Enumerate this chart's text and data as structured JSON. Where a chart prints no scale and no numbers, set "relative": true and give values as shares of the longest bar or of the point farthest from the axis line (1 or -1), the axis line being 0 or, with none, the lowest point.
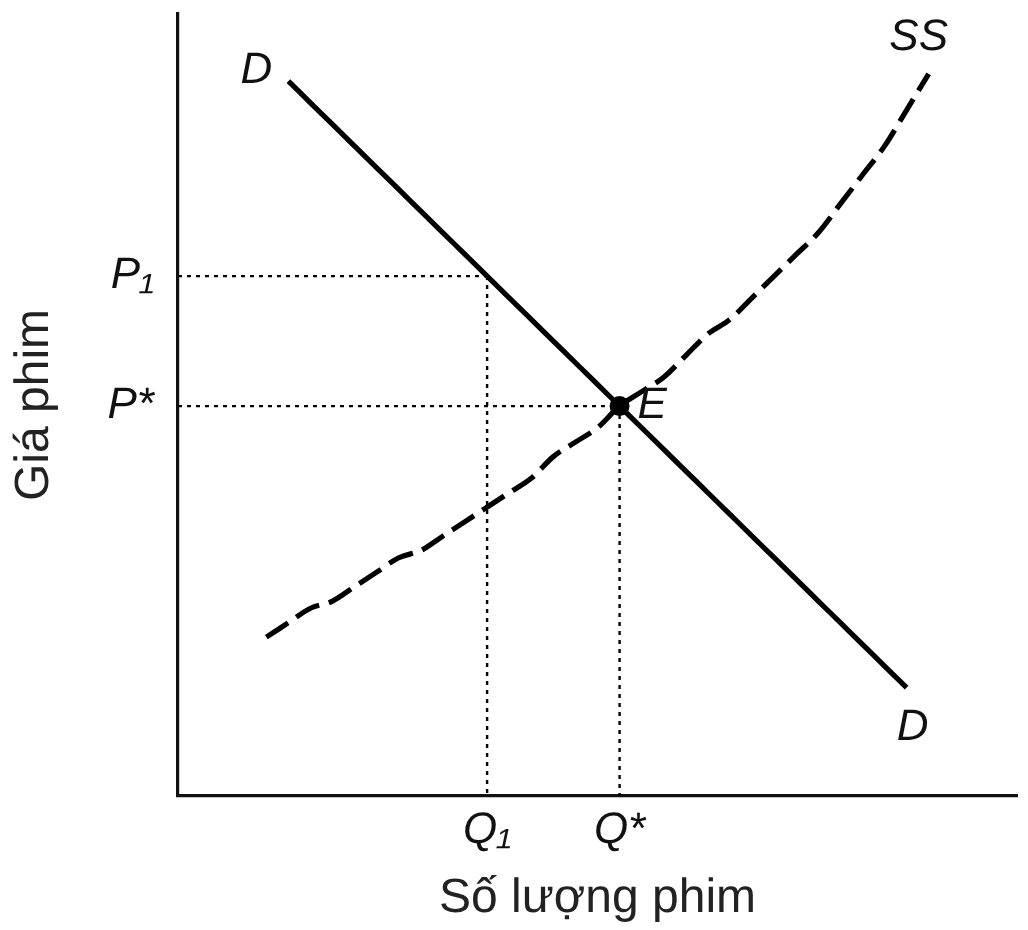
{
  "chart_data": {
    "type": "line",
    "xlabel": "Số lượng phim",
    "ylabel": "Giá phim",
    "relative": true,
    "legend": false,
    "tick_labels": "x",
    "categories": [
      null,
      null,
      null,
      null,
      null,
      null,
      null,
      null,
      null,
      null,
      null,
      null,
      null,
      null,
      "Q₁",
      null,
      null,
      null,
      null,
      null,
      "Q*",
      null,
      null,
      null,
      null,
      null,
      null,
      null,
      null,
      null,
      null,
      null,
      null,
      null,
      null,
      null,
      null,
      null,
      null
    ],
    "series": [
      {
        "name": "D",
        "color": "#000000",
        "line_style": "solid",
        "marker": "none",
        "values": [
          null,
          null,
          null,
          null,
          null,
          0.99,
          0.96,
          0.93,
          0.9,
          0.87,
          0.84,
          0.81,
          0.78,
          0.75,
          0.72,
          0.69,
          0.66,
          0.63,
          0.6,
          0.57,
          0.54,
          0.51,
          0.48,
          0.45,
          0.42,
          0.39,
          0.36,
          0.33,
          0.3,
          0.27,
          0.24,
          0.21,
          0.18,
          0.15,
          null,
          null,
          null,
          null,
          null
        ]
      },
      {
        "name": "SS",
        "color": "#000000",
        "line_style": "dashed",
        "marker": "none",
        "values": [
          null,
          null,
          null,
          null,
          0.22,
          0.24,
          0.26,
          0.27,
          0.29,
          0.31,
          0.33,
          0.34,
          0.36,
          0.38,
          0.4,
          0.42,
          0.44,
          0.47,
          0.49,
          0.51,
          0.54,
          0.56,
          0.58,
          0.61,
          0.64,
          0.66,
          0.69,
          0.72,
          0.75,
          0.78,
          0.82,
          0.86,
          0.9,
          0.95,
          1,
          null,
          null,
          null,
          null
        ]
      },
      {
        "name": "E",
        "type": "scatter",
        "color": "#000000",
        "marker": "circle",
        "values": [
          null,
          null,
          null,
          null,
          null,
          null,
          null,
          null,
          null,
          null,
          null,
          null,
          null,
          null,
          null,
          null,
          null,
          null,
          null,
          null,
          0.54,
          null,
          null,
          null,
          null,
          null,
          null,
          null,
          null,
          null,
          null,
          null,
          null,
          null,
          null,
          null,
          null,
          null,
          null
        ]
      }
    ],
    "ref_lines": [
      {
        "axis": "y",
        "value": 0.72,
        "label": "P₁",
        "line_style": "dotted"
      },
      {
        "axis": "y",
        "value": 0.54,
        "label": "P*",
        "line_style": "dotted"
      }
    ],
    "annotations": [
      "D"
    ]
  }
}
